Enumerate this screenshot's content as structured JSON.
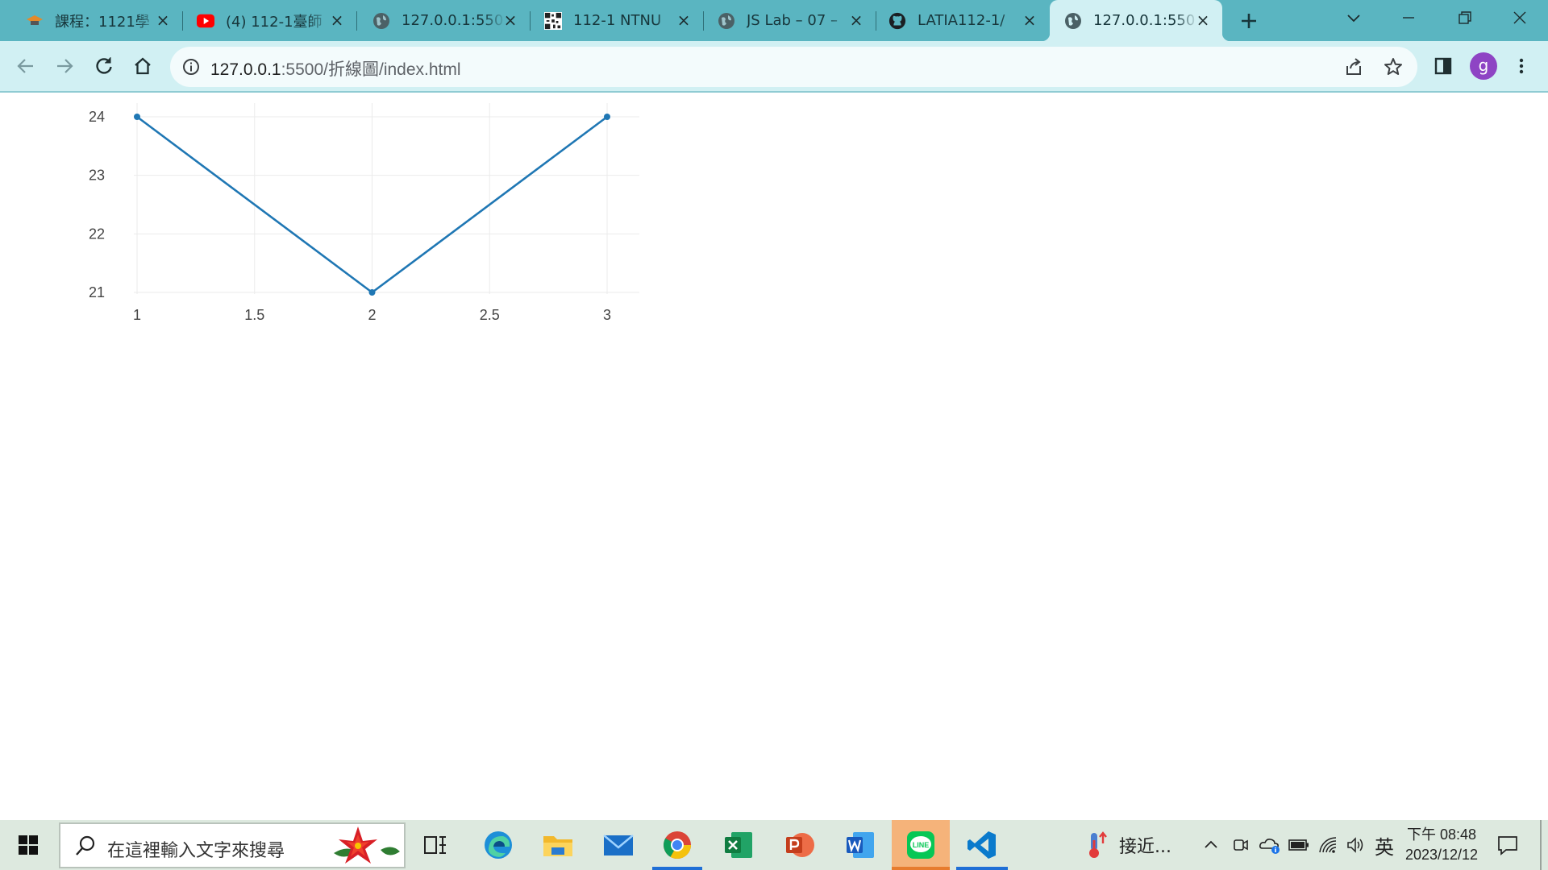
{
  "browser": {
    "tabs": [
      {
        "title": "課程：1121學",
        "icon": "moodle-hat-icon"
      },
      {
        "title": "(4) 112-1臺師",
        "icon": "youtube-icon"
      },
      {
        "title": "127.0.0.1:550",
        "icon": "globe-icon"
      },
      {
        "title": "112-1 NTNU",
        "icon": "qr-code-icon"
      },
      {
        "title": "JS Lab – 07 –",
        "icon": "globe-icon"
      },
      {
        "title": "LATIA112-1/",
        "icon": "github-icon"
      },
      {
        "title": "127.0.0.1:550",
        "icon": "globe-icon",
        "active": true
      }
    ],
    "url_host": "127.0.0.1",
    "url_rest": ":5500/折線圖/index.html",
    "profile_initial": "g",
    "colors": {
      "tabstrip": "#5ab5c1",
      "toolbar": "#d1f0f3",
      "active_tab": "#d1f0f3"
    }
  },
  "chart_data": {
    "type": "line",
    "x": [
      1,
      2,
      3
    ],
    "y": [
      24,
      21,
      24
    ],
    "xticks": [
      "1",
      "1.5",
      "2",
      "2.5",
      "3"
    ],
    "yticks": [
      "21",
      "22",
      "23",
      "24"
    ],
    "xlim": [
      1,
      3
    ],
    "ylim": [
      21,
      24
    ],
    "grid": true,
    "line_color": "#1f77b4",
    "mode": "lines+markers"
  },
  "taskbar": {
    "search_placeholder": "在這裡輸入文字來搜尋",
    "weather_text": "接近...",
    "ime": "英",
    "clock_time": "下午 08:48",
    "clock_date": "2023/12/12"
  }
}
